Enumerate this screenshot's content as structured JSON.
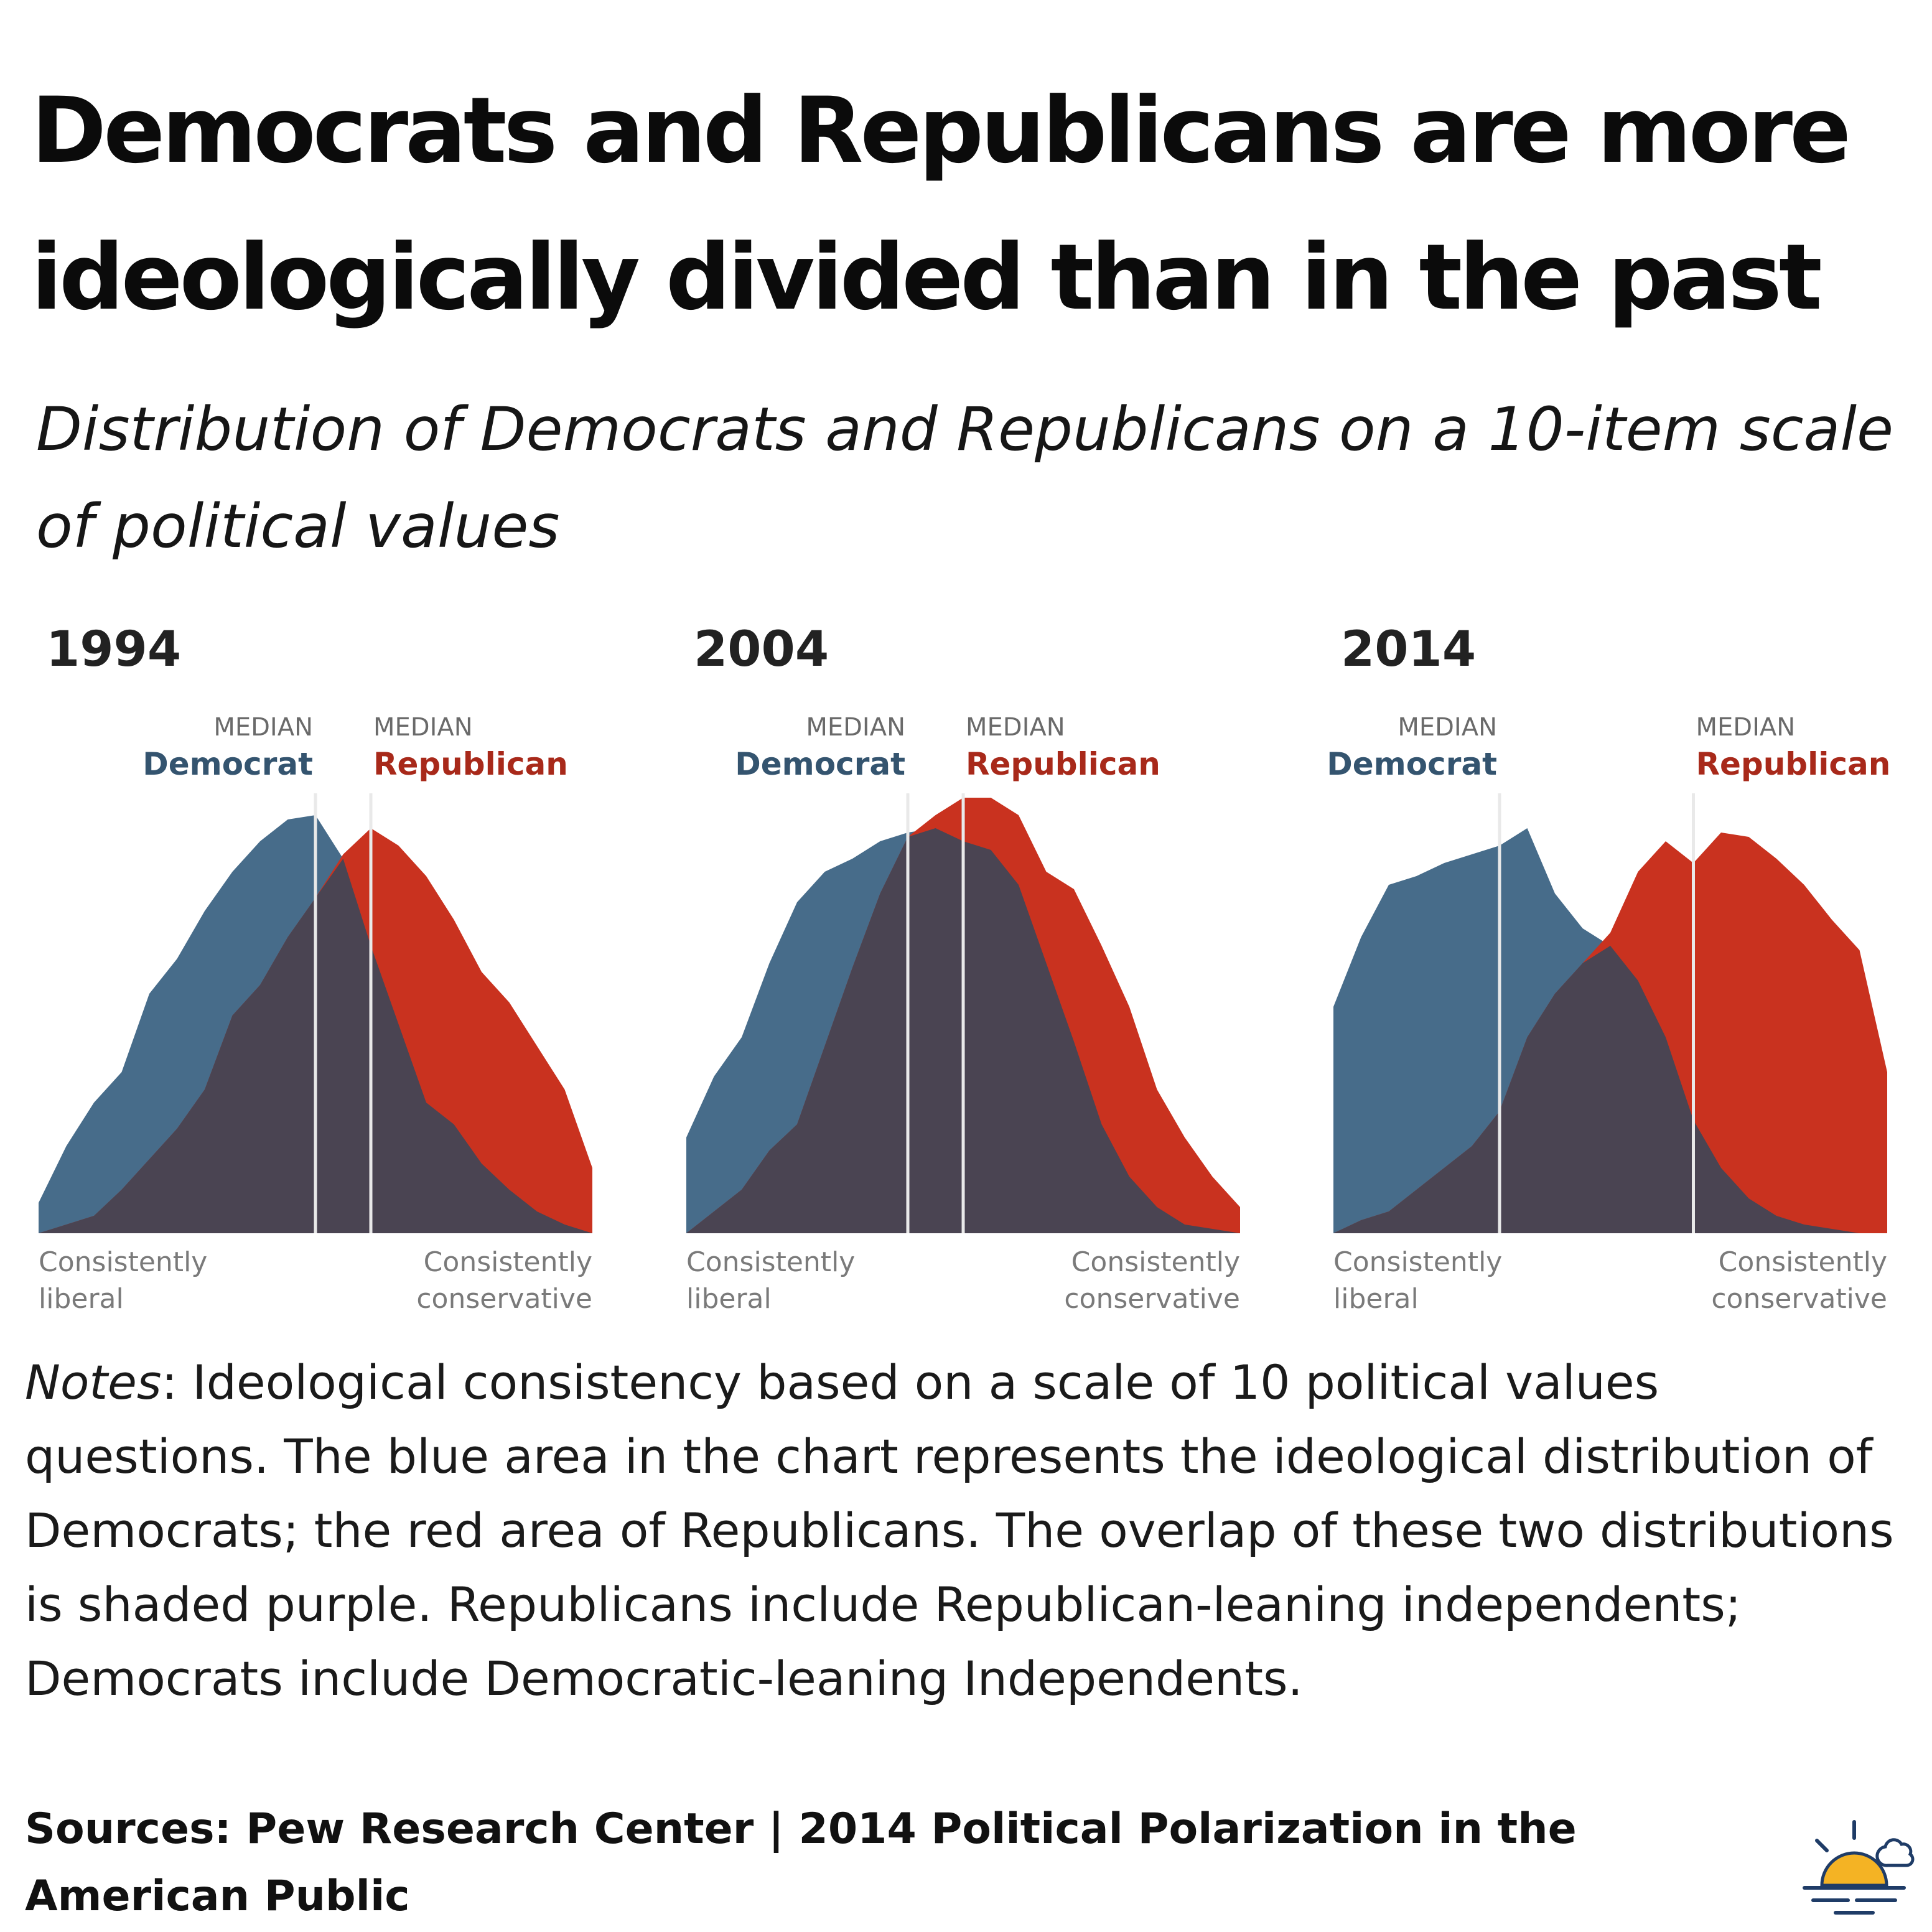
{
  "title": "Democrats and Republicans are more ideologically divided than in the past",
  "subtitle": "Distribution of Democrats and Republicans on a 10-item scale of political values",
  "chart_data": [
    {
      "type": "area",
      "year": "1994",
      "x": [
        0,
        0.05,
        0.1,
        0.15,
        0.2,
        0.25,
        0.3,
        0.35,
        0.4,
        0.45,
        0.5,
        0.55,
        0.6,
        0.65,
        0.7,
        0.75,
        0.8,
        0.85,
        0.9,
        0.95,
        1
      ],
      "series": [
        {
          "name": "Democrat",
          "color": "#476c8a",
          "values": [
            0.07,
            0.2,
            0.3,
            0.37,
            0.55,
            0.63,
            0.74,
            0.83,
            0.9,
            0.95,
            0.96,
            0.86,
            0.66,
            0.48,
            0.3,
            0.25,
            0.16,
            0.1,
            0.05,
            0.02,
            0
          ]
        },
        {
          "name": "Republican",
          "color": "#c9321f",
          "values": [
            0,
            0.02,
            0.04,
            0.1,
            0.17,
            0.24,
            0.33,
            0.5,
            0.57,
            0.68,
            0.77,
            0.87,
            0.93,
            0.89,
            0.82,
            0.72,
            0.6,
            0.53,
            0.43,
            0.33,
            0.15
          ]
        }
      ],
      "median_democrat": 0.5,
      "median_republican": 0.6,
      "median_label": "MEDIAN",
      "democrat_label": "Democrat",
      "republican_label": "Republican",
      "xlabel_left": [
        "Consistently",
        "liberal"
      ],
      "xlabel_right": [
        "Consistently",
        "conservative"
      ]
    },
    {
      "type": "area",
      "year": "2004",
      "x": [
        0,
        0.05,
        0.1,
        0.15,
        0.2,
        0.25,
        0.3,
        0.35,
        0.4,
        0.45,
        0.5,
        0.55,
        0.6,
        0.65,
        0.7,
        0.75,
        0.8,
        0.85,
        0.9,
        0.95,
        1
      ],
      "series": [
        {
          "name": "Democrat",
          "color": "#476c8a",
          "values": [
            0.22,
            0.36,
            0.45,
            0.62,
            0.76,
            0.83,
            0.86,
            0.9,
            0.92,
            0.93,
            0.9,
            0.88,
            0.8,
            0.62,
            0.44,
            0.25,
            0.13,
            0.06,
            0.02,
            0.01,
            0
          ]
        },
        {
          "name": "Republican",
          "color": "#c9321f",
          "values": [
            0,
            0.05,
            0.1,
            0.19,
            0.25,
            0.43,
            0.61,
            0.78,
            0.91,
            0.96,
            1.0,
            1.0,
            0.96,
            0.83,
            0.79,
            0.66,
            0.52,
            0.33,
            0.22,
            0.13,
            0.06
          ]
        }
      ],
      "median_democrat": 0.4,
      "median_republican": 0.5,
      "median_label": "MEDIAN",
      "democrat_label": "Democrat",
      "republican_label": "Republican",
      "xlabel_left": [
        "Consistently",
        "liberal"
      ],
      "xlabel_right": [
        "Consistently",
        "conservative"
      ]
    },
    {
      "type": "area",
      "year": "2014",
      "x": [
        0,
        0.05,
        0.1,
        0.15,
        0.2,
        0.25,
        0.3,
        0.35,
        0.4,
        0.45,
        0.5,
        0.55,
        0.6,
        0.65,
        0.7,
        0.75,
        0.8,
        0.85,
        0.9,
        0.95,
        1
      ],
      "series": [
        {
          "name": "Democrat",
          "color": "#476c8a",
          "values": [
            0.52,
            0.68,
            0.8,
            0.82,
            0.85,
            0.87,
            0.89,
            0.93,
            0.78,
            0.7,
            0.66,
            0.58,
            0.45,
            0.26,
            0.15,
            0.08,
            0.04,
            0.02,
            0.01,
            0,
            0
          ]
        },
        {
          "name": "Republican",
          "color": "#c9321f",
          "values": [
            0,
            0.03,
            0.05,
            0.1,
            0.15,
            0.2,
            0.28,
            0.45,
            0.55,
            0.62,
            0.69,
            0.83,
            0.9,
            0.85,
            0.92,
            0.91,
            0.86,
            0.8,
            0.72,
            0.65,
            0.37
          ]
        }
      ],
      "median_democrat": 0.3,
      "median_republican": 0.65,
      "median_label": "MEDIAN",
      "democrat_label": "Democrat",
      "republican_label": "Republican",
      "xlabel_left": [
        "Consistently",
        "liberal"
      ],
      "xlabel_right": [
        "Consistently",
        "conservative"
      ]
    }
  ],
  "colors": {
    "democrat": "#476c8a",
    "republican": "#c9321f",
    "overlap": "#4a4452",
    "median_line": "#e9e9e9"
  },
  "notes": {
    "lead": "Notes",
    "body": ": Ideological consistency based on a scale of 10 political values questions. The blue area in the chart represents the ideological distribution of Democrats; the red area of Republicans. The overlap of these two distributions is shaded purple. Republicans include Republican-leaning independents; Democrats include Democratic-leaning Independents."
  },
  "sources": "Sources: Pew Research Center | 2014 Political Polarization in the American Public",
  "logo_icon": "sunrise-cloud-icon"
}
